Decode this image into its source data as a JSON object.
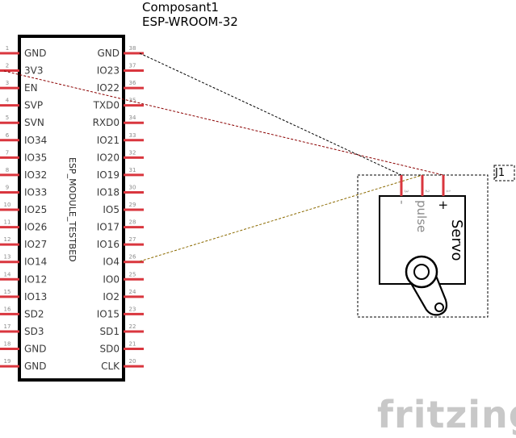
{
  "component": {
    "title": "Composant1",
    "model": "ESP-WROOM-32",
    "module_label": "ESP_MODULE_TESTBED",
    "left_pins": [
      {
        "num": "1",
        "name": "GND"
      },
      {
        "num": "2",
        "name": "3V3"
      },
      {
        "num": "3",
        "name": "EN"
      },
      {
        "num": "4",
        "name": "SVP"
      },
      {
        "num": "5",
        "name": "SVN"
      },
      {
        "num": "6",
        "name": "IO34"
      },
      {
        "num": "7",
        "name": "IO35"
      },
      {
        "num": "8",
        "name": "IO32"
      },
      {
        "num": "9",
        "name": "IO33"
      },
      {
        "num": "10",
        "name": "IO25"
      },
      {
        "num": "11",
        "name": "IO26"
      },
      {
        "num": "12",
        "name": "IO27"
      },
      {
        "num": "13",
        "name": "IO14"
      },
      {
        "num": "14",
        "name": "IO12"
      },
      {
        "num": "15",
        "name": "IO13"
      },
      {
        "num": "16",
        "name": "SD2"
      },
      {
        "num": "17",
        "name": "SD3"
      },
      {
        "num": "18",
        "name": "GND"
      },
      {
        "num": "19",
        "name": "GND"
      }
    ],
    "right_pins": [
      {
        "num": "38",
        "name": "GND"
      },
      {
        "num": "37",
        "name": "IO23"
      },
      {
        "num": "36",
        "name": "IO22"
      },
      {
        "num": "35",
        "name": "TXD0"
      },
      {
        "num": "34",
        "name": "RXD0"
      },
      {
        "num": "33",
        "name": "IO21"
      },
      {
        "num": "32",
        "name": "IO20"
      },
      {
        "num": "31",
        "name": "IO19"
      },
      {
        "num": "30",
        "name": "IO18"
      },
      {
        "num": "29",
        "name": "IO5"
      },
      {
        "num": "28",
        "name": "IO17"
      },
      {
        "num": "27",
        "name": "IO16"
      },
      {
        "num": "26",
        "name": "IO4"
      },
      {
        "num": "25",
        "name": "IO0"
      },
      {
        "num": "24",
        "name": "IO2"
      },
      {
        "num": "23",
        "name": "IO15"
      },
      {
        "num": "22",
        "name": "SD1"
      },
      {
        "num": "21",
        "name": "SD0"
      },
      {
        "num": "20",
        "name": "CLK"
      }
    ]
  },
  "servo": {
    "ref": "J1",
    "label": "Servo",
    "pins": [
      {
        "num": "3",
        "label": "-"
      },
      {
        "num": "2",
        "label": "pulse"
      },
      {
        "num": "1",
        "label": "+"
      }
    ]
  },
  "wires": [
    {
      "from": "GND",
      "to": "-",
      "color": "#000000"
    },
    {
      "from": "3V3",
      "to": "+",
      "color": "#8b0000"
    },
    {
      "from": "IO4",
      "to": "pulse",
      "color": "#8b6a00"
    }
  ],
  "colors": {
    "pin": "#d9363e",
    "outline": "#000000",
    "pin_number": "#8a8a8a",
    "label": "#3a3a3a",
    "logo": "#c8c8c8"
  },
  "logo": "fritzing"
}
